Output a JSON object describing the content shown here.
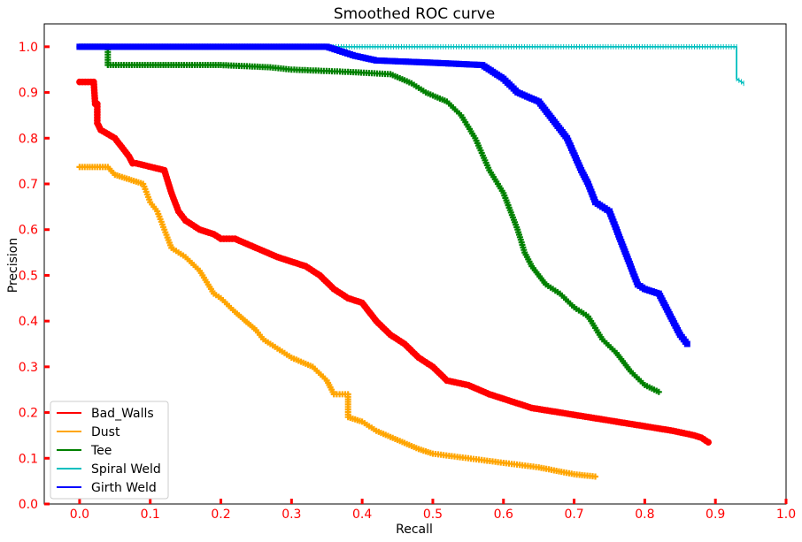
{
  "chart_data": {
    "type": "line",
    "title": "Smoothed ROC curve",
    "xlabel": "Recall",
    "ylabel": "Precision",
    "xlim": [
      -0.05,
      1.0
    ],
    "ylim": [
      0.0,
      1.05
    ],
    "xticks": [
      "0.0",
      "0.1",
      "0.2",
      "0.3",
      "0.4",
      "0.5",
      "0.6",
      "0.7",
      "0.8",
      "0.9",
      "1.0"
    ],
    "yticks": [
      "0.0",
      "0.1",
      "0.2",
      "0.3",
      "0.4",
      "0.5",
      "0.6",
      "0.7",
      "0.8",
      "0.9",
      "1.0"
    ],
    "tick_label_color": "#ff0000",
    "legend_position": "lower-left",
    "grid": false,
    "series": [
      {
        "name": "Bad_Walls",
        "color": "#ff0000",
        "marker": "circle",
        "x": [
          0.0,
          0.02,
          0.022,
          0.025,
          0.025,
          0.03,
          0.05,
          0.06,
          0.07,
          0.075,
          0.08,
          0.12,
          0.13,
          0.14,
          0.15,
          0.16,
          0.17,
          0.19,
          0.2,
          0.22,
          0.25,
          0.28,
          0.3,
          0.32,
          0.34,
          0.36,
          0.38,
          0.4,
          0.42,
          0.44,
          0.46,
          0.48,
          0.5,
          0.52,
          0.55,
          0.58,
          0.6,
          0.64,
          0.68,
          0.72,
          0.76,
          0.8,
          0.84,
          0.87,
          0.88,
          0.89
        ],
        "y": [
          0.923,
          0.923,
          0.875,
          0.875,
          0.833,
          0.818,
          0.8,
          0.78,
          0.76,
          0.745,
          0.745,
          0.73,
          0.68,
          0.64,
          0.62,
          0.61,
          0.6,
          0.59,
          0.58,
          0.58,
          0.56,
          0.54,
          0.53,
          0.52,
          0.5,
          0.47,
          0.45,
          0.44,
          0.4,
          0.37,
          0.35,
          0.32,
          0.3,
          0.27,
          0.26,
          0.24,
          0.23,
          0.21,
          0.2,
          0.19,
          0.18,
          0.17,
          0.16,
          0.15,
          0.145,
          0.135
        ]
      },
      {
        "name": "Dust",
        "color": "#ffa500",
        "marker": "plus",
        "x": [
          0.0,
          0.04,
          0.05,
          0.07,
          0.09,
          0.1,
          0.11,
          0.12,
          0.13,
          0.14,
          0.15,
          0.17,
          0.19,
          0.2,
          0.22,
          0.25,
          0.26,
          0.28,
          0.3,
          0.33,
          0.35,
          0.36,
          0.38,
          0.38,
          0.4,
          0.42,
          0.45,
          0.48,
          0.5,
          0.55,
          0.6,
          0.65,
          0.7,
          0.73
        ],
        "y": [
          0.737,
          0.737,
          0.72,
          0.71,
          0.7,
          0.66,
          0.64,
          0.6,
          0.56,
          0.55,
          0.54,
          0.51,
          0.46,
          0.45,
          0.42,
          0.38,
          0.36,
          0.34,
          0.32,
          0.3,
          0.27,
          0.24,
          0.24,
          0.19,
          0.18,
          0.16,
          0.14,
          0.12,
          0.11,
          0.1,
          0.09,
          0.08,
          0.065,
          0.06
        ]
      },
      {
        "name": "Tee",
        "color": "#008000",
        "marker": "plus",
        "x": [
          0.0,
          0.04,
          0.04,
          0.1,
          0.2,
          0.27,
          0.3,
          0.38,
          0.44,
          0.47,
          0.49,
          0.52,
          0.54,
          0.56,
          0.58,
          0.6,
          0.62,
          0.63,
          0.64,
          0.66,
          0.68,
          0.7,
          0.72,
          0.74,
          0.76,
          0.78,
          0.8,
          0.82
        ],
        "y": [
          1.0,
          1.0,
          0.96,
          0.96,
          0.96,
          0.955,
          0.95,
          0.945,
          0.94,
          0.92,
          0.9,
          0.88,
          0.85,
          0.8,
          0.73,
          0.68,
          0.6,
          0.55,
          0.52,
          0.48,
          0.46,
          0.43,
          0.41,
          0.36,
          0.33,
          0.29,
          0.26,
          0.245
        ]
      },
      {
        "name": "Spiral Weld",
        "color": "#00bfbf",
        "marker": "plus",
        "x": [
          0.0,
          0.1,
          0.2,
          0.3,
          0.4,
          0.5,
          0.6,
          0.7,
          0.8,
          0.9,
          0.93,
          0.93,
          0.94
        ],
        "y": [
          1.0,
          1.0,
          1.0,
          1.0,
          1.0,
          1.0,
          1.0,
          1.0,
          1.0,
          1.0,
          1.0,
          0.93,
          0.92
        ]
      },
      {
        "name": "Girth Weld",
        "color": "#0000ff",
        "marker": "square",
        "x": [
          0.0,
          0.2,
          0.35,
          0.39,
          0.42,
          0.5,
          0.57,
          0.6,
          0.62,
          0.65,
          0.67,
          0.69,
          0.71,
          0.72,
          0.73,
          0.75,
          0.76,
          0.78,
          0.79,
          0.8,
          0.82,
          0.83,
          0.84,
          0.85,
          0.86
        ],
        "y": [
          1.0,
          1.0,
          1.0,
          0.98,
          0.97,
          0.965,
          0.96,
          0.93,
          0.9,
          0.88,
          0.84,
          0.8,
          0.73,
          0.7,
          0.66,
          0.64,
          0.6,
          0.52,
          0.48,
          0.47,
          0.46,
          0.43,
          0.4,
          0.37,
          0.35
        ]
      }
    ]
  }
}
